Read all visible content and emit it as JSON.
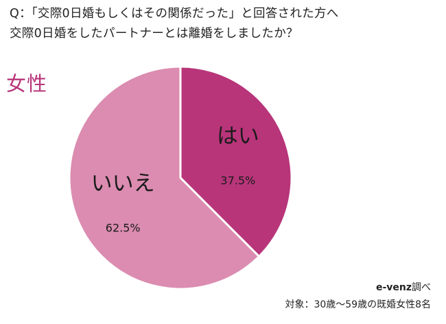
{
  "question": {
    "line1": "Q：「交際0日婚もしくはその関係だった」と回答された方へ",
    "line2": "交際0日婚をしたパートナーとは離婚をしましたか？"
  },
  "category_label": "女性",
  "footer": {
    "source_brand": "e-venz",
    "source_suffix": "調べ",
    "target": "対象：30歳〜59歳の既婚女性8名"
  },
  "chart_data": {
    "type": "pie",
    "slices": [
      {
        "label": "はい",
        "value": 37.5,
        "value_label": "37.5%",
        "color": "#b8357a"
      },
      {
        "label": "いいえ",
        "value": 62.5,
        "value_label": "62.5%",
        "color": "#db8cb0"
      }
    ]
  }
}
